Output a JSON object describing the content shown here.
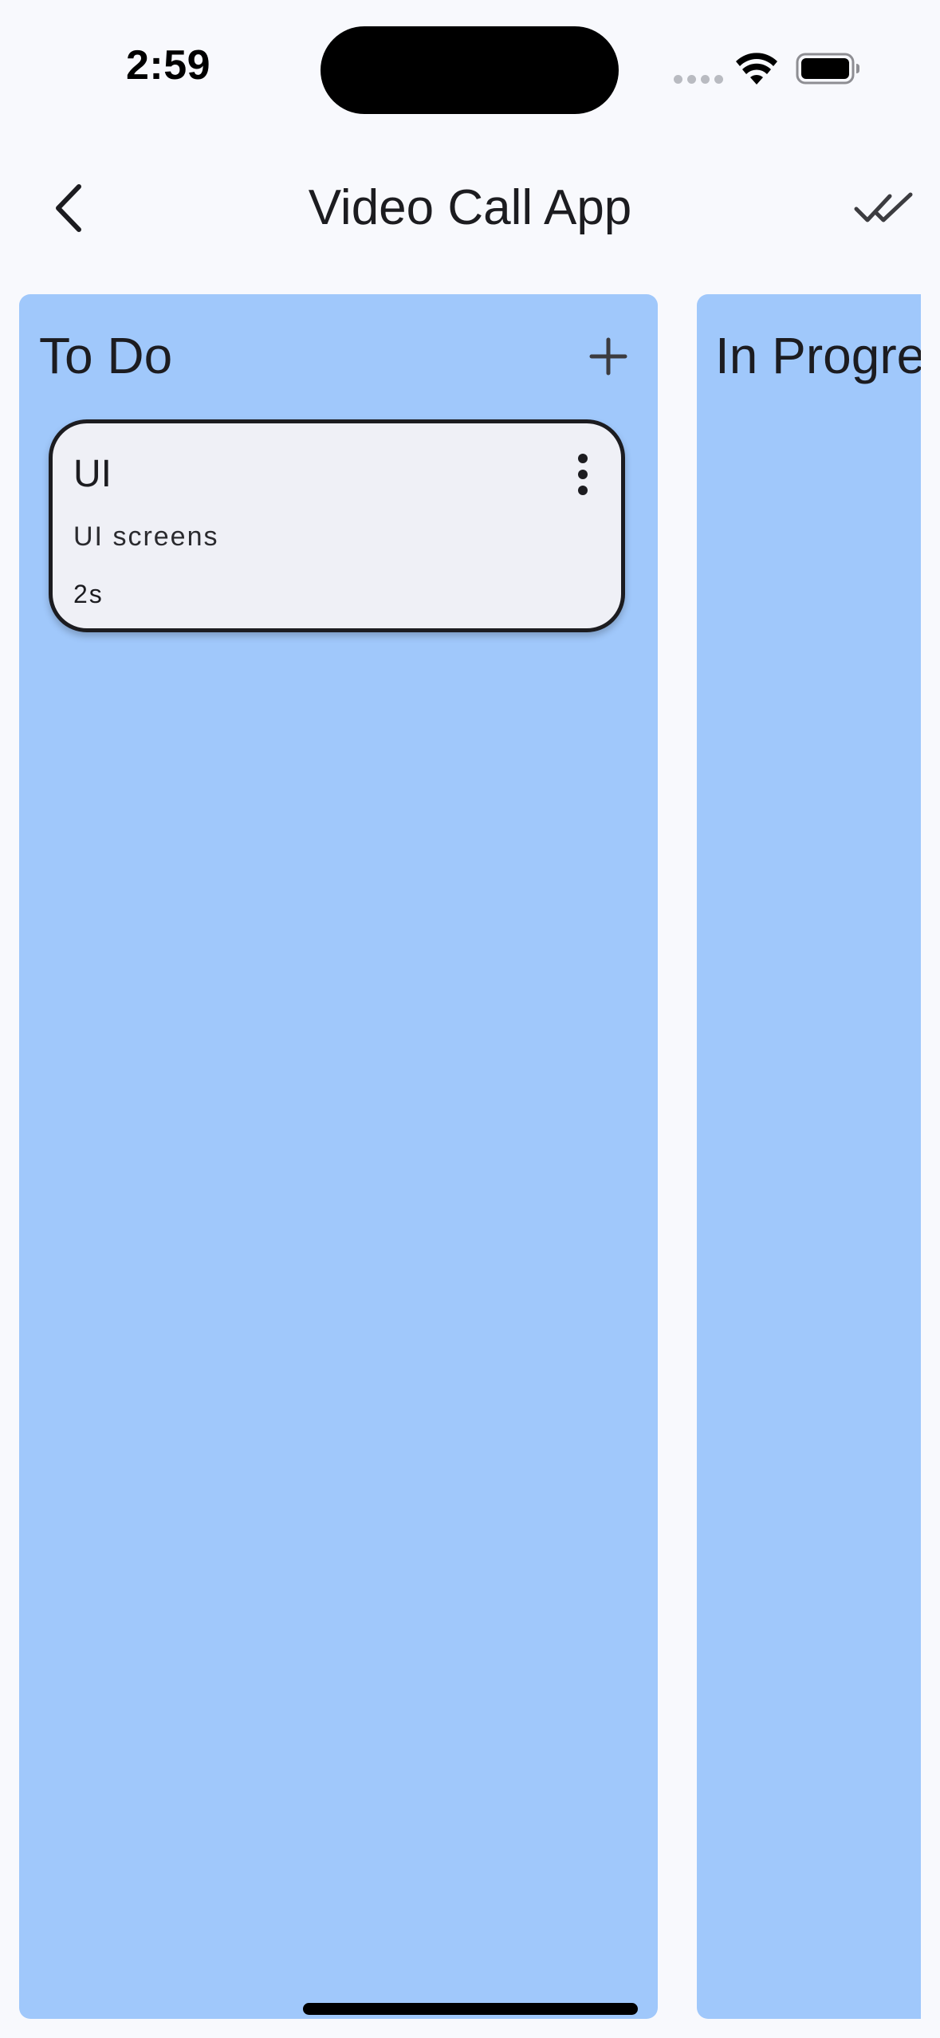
{
  "status_bar": {
    "time": "2:59"
  },
  "app_bar": {
    "title": "Video Call App",
    "back_icon": "chevron-left-icon",
    "action_icon": "done-all-icon"
  },
  "columns": [
    {
      "title": "To Do",
      "add_icon": "plus-icon",
      "cards": [
        {
          "title": "UI",
          "description": "UI screens",
          "age": "2s",
          "menu_icon": "more-vert-icon"
        }
      ]
    },
    {
      "title": "In Progress",
      "cards": []
    }
  ],
  "colors": {
    "background": "#f8f9fd",
    "column": "#a0c8fb",
    "card": "#eff0f6",
    "card_border": "#1c1c20",
    "text": "#1c1c20"
  }
}
